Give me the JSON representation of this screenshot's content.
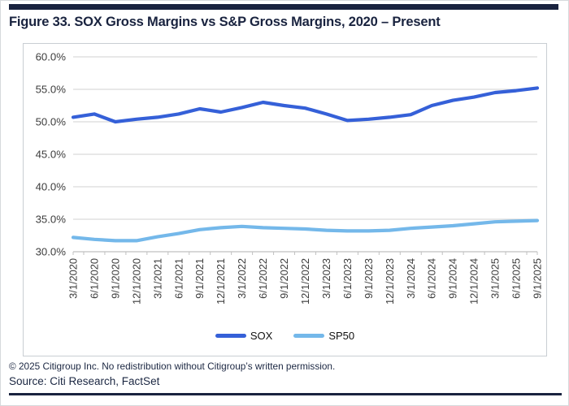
{
  "figure": {
    "title": "Figure 33. SOX Gross Margins vs S&P Gross Margins, 2020 – Present"
  },
  "chart_data": {
    "type": "line",
    "title": "Figure 33. SOX Gross Margins vs S&P Gross Margins, 2020 – Present",
    "categories": [
      "3/1/2020",
      "6/1/2020",
      "9/1/2020",
      "12/1/2020",
      "3/1/2021",
      "6/1/2021",
      "9/1/2021",
      "12/1/2021",
      "3/1/2022",
      "6/1/2022",
      "9/1/2022",
      "12/1/2022",
      "3/1/2023",
      "6/1/2023",
      "9/1/2023",
      "12/1/2023",
      "3/1/2024",
      "6/1/2024",
      "9/1/2024",
      "12/1/2024",
      "3/1/2025",
      "6/1/2025",
      "9/1/2025"
    ],
    "series": [
      {
        "name": "SOX",
        "color": "#3560d8",
        "values": [
          50.7,
          51.2,
          50.0,
          50.4,
          50.7,
          51.2,
          52.0,
          51.5,
          52.2,
          53.0,
          52.5,
          52.1,
          51.2,
          50.2,
          50.4,
          50.7,
          51.1,
          52.5,
          53.3,
          53.8,
          54.5,
          54.8,
          55.2
        ]
      },
      {
        "name": "SP50",
        "color": "#74b8ea",
        "values": [
          32.2,
          31.9,
          31.7,
          31.7,
          32.3,
          32.8,
          33.4,
          33.7,
          33.9,
          33.7,
          33.6,
          33.5,
          33.3,
          33.2,
          33.2,
          33.3,
          33.6,
          33.8,
          34.0,
          34.3,
          34.6,
          34.7,
          34.8
        ]
      }
    ],
    "xlabel": "",
    "ylabel": "",
    "ylim": [
      30,
      60
    ],
    "ytick_step": 5,
    "ytick_suffix": "%",
    "grid": "horizontal",
    "legend_position": "bottom"
  },
  "footer": {
    "copyright": "© 2025 Citigroup Inc. No redistribution without Citigroup’s written permission.",
    "source": "Source: Citi Research, FactSet"
  },
  "theme": {
    "accent_navy": "#19233f",
    "gridline": "#d9d9d9",
    "axis_line": "#c0c0c0",
    "axis_text": "#3d3d3d"
  }
}
